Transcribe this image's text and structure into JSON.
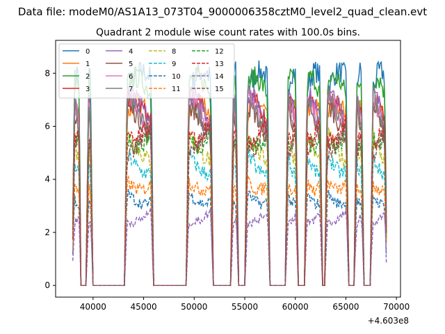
{
  "chart_data": {
    "type": "line",
    "suptitle": "Data file: modeM0/AS1A13_073T04_9000006358cztM0_level2_quad_clean.evt",
    "title": "Quadrant 2 module wise count rates with 100.0s bins.",
    "xlabel": "",
    "ylabel": "",
    "x_offset_label": "+4.603e8",
    "xlim": [
      36300,
      70400
    ],
    "ylim": [
      -0.44,
      9.24
    ],
    "xticks": [
      40000,
      45000,
      50000,
      55000,
      60000,
      65000,
      70000
    ],
    "xtick_labels": [
      "40000",
      "45000",
      "50000",
      "55000",
      "60000",
      "65000",
      "70000"
    ],
    "yticks": [
      0,
      2,
      4,
      6,
      8
    ],
    "ytick_labels": [
      "0",
      "2",
      "4",
      "6",
      "8"
    ],
    "grid": false,
    "legend_placement": "top-left",
    "active_windows": [
      [
        38000,
        38750
      ],
      [
        39400,
        39900
      ],
      [
        43200,
        45900
      ],
      [
        49300,
        51800
      ],
      [
        53700,
        54300
      ],
      [
        55100,
        57400
      ],
      [
        59100,
        60200
      ],
      [
        61000,
        62600
      ],
      [
        63000,
        65200
      ],
      [
        65900,
        66700
      ],
      [
        67500,
        69000
      ]
    ],
    "series": [
      {
        "name": "0",
        "color": "#1f77b4",
        "dash": "solid",
        "level": 7.2
      },
      {
        "name": "1",
        "color": "#ff7f0e",
        "dash": "solid",
        "level": 6.1
      },
      {
        "name": "2",
        "color": "#2ca02c",
        "dash": "solid",
        "level": 7.0
      },
      {
        "name": "3",
        "color": "#d62728",
        "dash": "solid",
        "level": 6.2
      },
      {
        "name": "4",
        "color": "#9467bd",
        "dash": "solid",
        "level": 6.4
      },
      {
        "name": "5",
        "color": "#8c564b",
        "dash": "solid",
        "level": 6.0
      },
      {
        "name": "6",
        "color": "#e377c2",
        "dash": "solid",
        "level": 6.5
      },
      {
        "name": "7",
        "color": "#7f7f7f",
        "dash": "solid",
        "level": 6.6
      },
      {
        "name": "8",
        "color": "#bcbd22",
        "dash": "dashed",
        "level": 5.4
      },
      {
        "name": "9",
        "color": "#17becf",
        "dash": "dashed",
        "level": 4.8
      },
      {
        "name": "10",
        "color": "#1f77b4",
        "dash": "dashed",
        "level": 3.5
      },
      {
        "name": "11",
        "color": "#ff7f0e",
        "dash": "dashed",
        "level": 4.1
      },
      {
        "name": "12",
        "color": "#2ca02c",
        "dash": "dashed",
        "level": 6.0
      },
      {
        "name": "13",
        "color": "#d62728",
        "dash": "dashed",
        "level": 6.2
      },
      {
        "name": "14",
        "color": "#9467bd",
        "dash": "dashed",
        "level": 2.7
      },
      {
        "name": "15",
        "color": "#8c564b",
        "dash": "dashed",
        "level": 5.7
      }
    ]
  }
}
